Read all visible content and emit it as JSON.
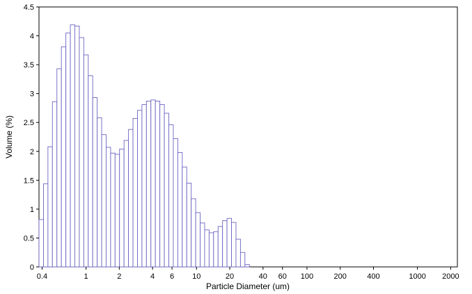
{
  "chart_data": {
    "type": "bar",
    "xlabel": "Particle Diameter (um)",
    "ylabel": "Volume (%)",
    "x_scale": "log",
    "xlim": [
      0.375,
      2300
    ],
    "ylim": [
      0,
      4.5
    ],
    "grid": false,
    "x_ticks": [
      0.4,
      1,
      2,
      4,
      6,
      10,
      20,
      40,
      60,
      100,
      200,
      400,
      1000,
      2000
    ],
    "x_tick_labels": [
      "0.4",
      "1",
      "2",
      "4",
      "6",
      "10",
      "20",
      "40",
      "60",
      "100",
      "200",
      "400",
      "1000",
      "2000"
    ],
    "y_ticks": [
      0,
      0.5,
      1,
      1.5,
      2,
      2.5,
      3,
      3.5,
      4,
      4.5
    ],
    "y_tick_labels": [
      "0",
      "0.5",
      "1",
      "1.5",
      "2",
      "2.5",
      "3",
      "3.5",
      "4",
      "4.5"
    ],
    "bin_edges": [
      0.375,
      0.412,
      0.452,
      0.496,
      0.545,
      0.598,
      0.657,
      0.721,
      0.791,
      0.869,
      0.954,
      1.047,
      1.149,
      1.261,
      1.385,
      1.52,
      1.669,
      1.832,
      2.011,
      2.208,
      2.424,
      2.661,
      2.922,
      3.207,
      3.521,
      3.866,
      4.244,
      4.659,
      5.115,
      5.615,
      6.165,
      6.768,
      7.43,
      8.157,
      8.955,
      9.831,
      10.79,
      11.85,
      13.01,
      14.28,
      15.68,
      17.21,
      18.89,
      20.74,
      22.77,
      25.0,
      27.45,
      30.13,
      33.08
    ],
    "values": [
      0.82,
      1.44,
      2.08,
      2.86,
      3.43,
      3.81,
      4.05,
      4.19,
      4.17,
      3.97,
      3.67,
      3.31,
      2.93,
      2.58,
      2.29,
      2.07,
      1.97,
      1.95,
      2.04,
      2.19,
      2.38,
      2.57,
      2.71,
      2.81,
      2.87,
      2.89,
      2.87,
      2.81,
      2.66,
      2.46,
      2.22,
      1.98,
      1.73,
      1.45,
      1.18,
      0.94,
      0.76,
      0.64,
      0.59,
      0.61,
      0.7,
      0.8,
      0.84,
      0.77,
      0.48,
      0.25,
      0.04,
      0.0
    ]
  }
}
